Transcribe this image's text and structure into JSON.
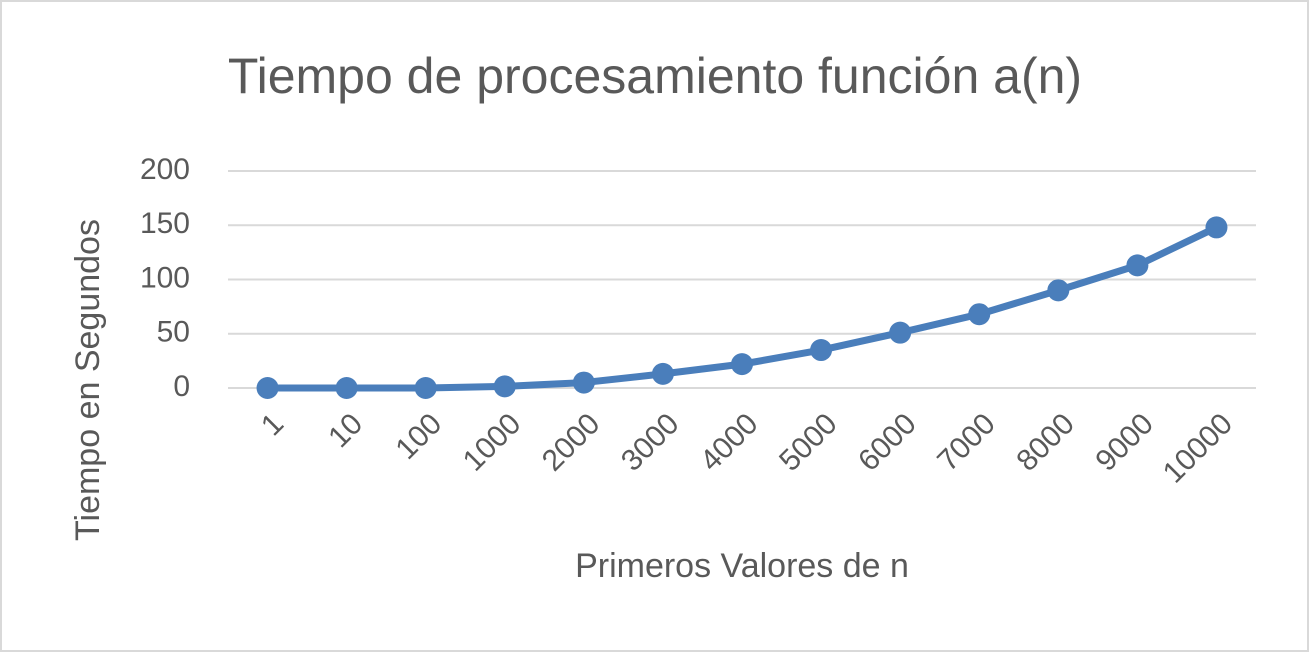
{
  "chart_data": {
    "type": "line",
    "title": "Tiempo de procesamiento función a(n)",
    "x_label": "Primeros Valores de n",
    "y_label": "Tiempo en Segundos",
    "categories": [
      "1",
      "10",
      "100",
      "1000",
      "2000",
      "3000",
      "4000",
      "5000",
      "6000",
      "7000",
      "8000",
      "9000",
      "10000"
    ],
    "series": [
      {
        "name": "a(n)",
        "color": "#4a7ebb",
        "values": [
          0,
          0,
          0,
          1.5,
          5,
          13,
          22,
          35,
          51,
          68,
          90,
          113,
          148
        ]
      }
    ],
    "ylim": [
      0,
      200
    ],
    "yticks": [
      0,
      50,
      100,
      150,
      200
    ],
    "grid": true
  }
}
